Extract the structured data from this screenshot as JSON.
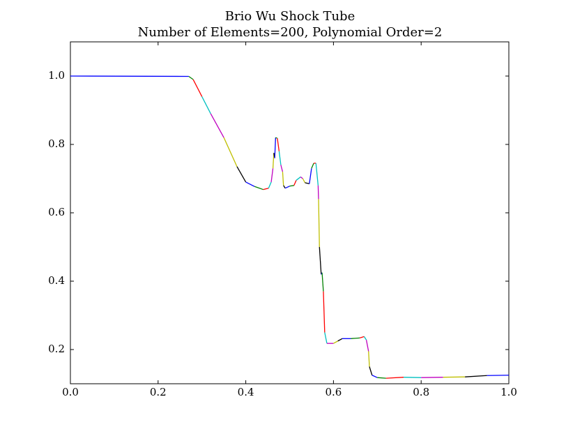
{
  "chart_data": {
    "type": "line",
    "title": "Brio Wu Shock Tube",
    "subtitle": "Number of Elements=200, Polynomial Order=2",
    "x": [
      0,
      0.27,
      0.28,
      0.3,
      0.32,
      0.35,
      0.38,
      0.4,
      0.42,
      0.44,
      0.452,
      0.458,
      0.462,
      0.464,
      0.466,
      0.468,
      0.472,
      0.476,
      0.48,
      0.484,
      0.486,
      0.49,
      0.5,
      0.51,
      0.515,
      0.525,
      0.53,
      0.535,
      0.545,
      0.55,
      0.555,
      0.56,
      0.565,
      0.566,
      0.568,
      0.572,
      0.574,
      0.577,
      0.58,
      0.585,
      0.6,
      0.61,
      0.62,
      0.64,
      0.66,
      0.67,
      0.675,
      0.68,
      0.682,
      0.688,
      0.7,
      0.72,
      0.76,
      0.8,
      0.85,
      0.9,
      0.95,
      1.0
    ],
    "series": [
      {
        "colors": [
          "#0000ff",
          "#008000",
          "#ff0000",
          "#00bfbf",
          "#bf00bf",
          "#bfbf00",
          "#000000"
        ],
        "values": [
          1.0,
          0.999,
          0.99,
          0.94,
          0.89,
          0.82,
          0.735,
          0.69,
          0.677,
          0.668,
          0.672,
          0.69,
          0.73,
          0.775,
          0.76,
          0.82,
          0.818,
          0.78,
          0.74,
          0.72,
          0.68,
          0.672,
          0.678,
          0.68,
          0.695,
          0.705,
          0.7,
          0.688,
          0.685,
          0.73,
          0.745,
          0.745,
          0.68,
          0.64,
          0.5,
          0.42,
          0.425,
          0.37,
          0.25,
          0.218,
          0.218,
          0.225,
          0.232,
          0.232,
          0.234,
          0.238,
          0.228,
          0.195,
          0.15,
          0.125,
          0.118,
          0.116,
          0.119,
          0.118,
          0.119,
          0.12,
          0.124,
          0.125
        ]
      }
    ],
    "xlim": [
      0,
      1
    ],
    "ylim": [
      0.1,
      1.1
    ],
    "xticks": [
      {
        "value": 0,
        "label": "0.0"
      },
      0.2,
      0.4,
      0.6,
      0.8,
      {
        "value": 1,
        "label": "1.0"
      }
    ],
    "yticks": [
      0.2,
      0.4,
      0.6,
      0.8,
      {
        "value": 1,
        "label": "1.0"
      }
    ],
    "grid": false
  }
}
